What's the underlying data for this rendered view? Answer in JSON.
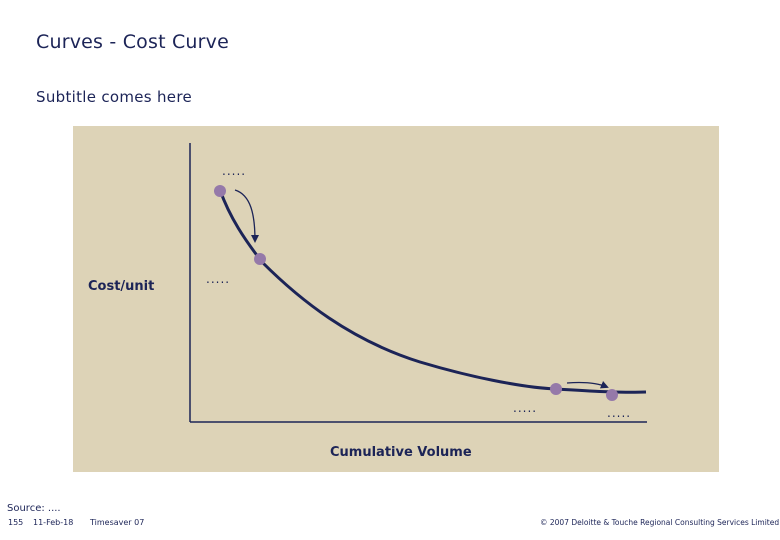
{
  "title": "Curves - Cost Curve",
  "subtitle": "Subtitle comes here",
  "diagram": {
    "y_axis_label": "Cost/unit",
    "x_axis_label": "Cumulative Volume",
    "labels": [
      ".....",
      ".....",
      ".....",
      "....."
    ],
    "colors": {
      "panel": "#ddd3b7",
      "curve": "#1c2457",
      "marker": "#9579a9"
    }
  },
  "footer": {
    "source": "Source: ....",
    "page_number": "155",
    "date": "11-Feb-18",
    "template_name": "Timesaver 07",
    "copyright": "© 2007 Deloitte & Touche Regional Consulting Services Limited"
  }
}
